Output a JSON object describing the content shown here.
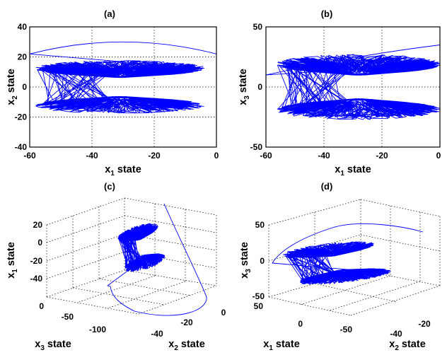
{
  "colors": {
    "trajectory": "#0000ff",
    "axes": "#000000",
    "grid": "#000000"
  },
  "chart_data": [
    {
      "panel": "(a)",
      "type": "line",
      "title": "(a)",
      "x_label": {
        "main": "x",
        "sub": "1",
        "rest": " state"
      },
      "y_label": {
        "main": "x",
        "sub": "2",
        "rest": " state"
      },
      "xlim": [
        -60,
        0
      ],
      "ylim": [
        -40,
        40
      ],
      "x_ticks": [
        "-60",
        "-40",
        "-20",
        "0"
      ],
      "y_ticks": [
        "-40",
        "-20",
        "0",
        "20",
        "40"
      ],
      "grid": true,
      "lobe_centers": [
        [
          -30,
          10
        ],
        [
          -30,
          -10
        ]
      ],
      "transient_start": [
        -60,
        34
      ],
      "transient_end": [
        0,
        22
      ]
    },
    {
      "panel": "(b)",
      "type": "line",
      "title": "(b)",
      "x_label": {
        "main": "x",
        "sub": "1",
        "rest": " state"
      },
      "y_label": {
        "main": "x",
        "sub": "3",
        "rest": " state"
      },
      "xlim": [
        -60,
        0
      ],
      "ylim": [
        -50,
        50
      ],
      "x_ticks": [
        "-60",
        "-40",
        "-20",
        "0"
      ],
      "y_ticks": [
        "-50",
        "0",
        "50"
      ],
      "grid": true,
      "lobe_centers": [
        [
          -26,
          10
        ],
        [
          -26,
          -10
        ]
      ],
      "transient_start": [
        -60,
        22
      ],
      "transient_end": [
        0,
        35
      ]
    },
    {
      "panel": "(c)",
      "type": "line",
      "title": "(c)",
      "z_label": {
        "main": "x",
        "sub": "1",
        "rest": " state"
      },
      "x_label": {
        "main": "x",
        "sub": "3",
        "rest": " state"
      },
      "y_label": {
        "main": "x",
        "sub": "2",
        "rest": " state"
      },
      "z_ticks": [
        "20",
        "0",
        "-20",
        "-40"
      ],
      "x_ticks": [
        "0",
        "-50",
        "-100"
      ],
      "y_ticks": [
        "-40",
        "-20",
        "0"
      ],
      "grid": true
    },
    {
      "panel": "(d)",
      "type": "line",
      "title": "(d)",
      "z_label": {
        "main": "x",
        "sub": "3",
        "rest": " state"
      },
      "x_label": {
        "main": "x",
        "sub": "1",
        "rest": " state"
      },
      "y_label": {
        "main": "x",
        "sub": "2",
        "rest": " state"
      },
      "z_ticks": [
        "50",
        "0",
        "-50"
      ],
      "x_ticks": [
        "50",
        "0",
        "-50"
      ],
      "y_ticks": [
        "-40",
        "-20"
      ],
      "grid": true
    }
  ]
}
